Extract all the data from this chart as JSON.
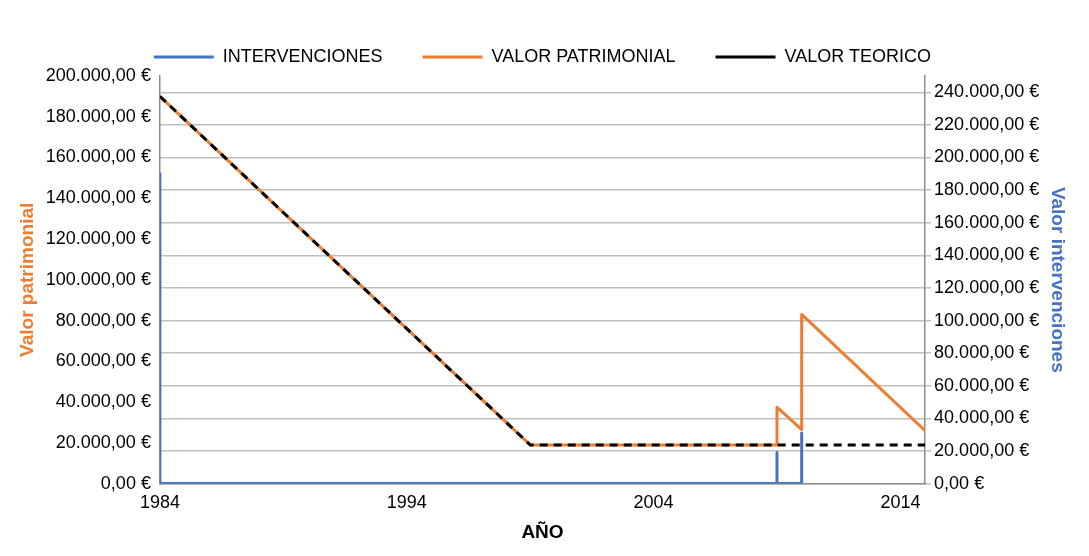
{
  "chart_data": {
    "type": "line",
    "xlabel": "AÑO",
    "ylabel": "Valor patrimonial",
    "y2label": "Valor intervenciones",
    "xlim": [
      1984,
      2015
    ],
    "xticks": [
      1984,
      1994,
      2004,
      2014
    ],
    "ylim": [
      0,
      200000
    ],
    "yticks": [
      {
        "value": 0,
        "label": "0,00 €"
      },
      {
        "value": 20000,
        "label": "20.000,00 €"
      },
      {
        "value": 40000,
        "label": "40.000,00 €"
      },
      {
        "value": 60000,
        "label": "60.000,00 €"
      },
      {
        "value": 80000,
        "label": "80.000,00 €"
      },
      {
        "value": 100000,
        "label": "100.000,00 €"
      },
      {
        "value": 120000,
        "label": "120.000,00 €"
      },
      {
        "value": 140000,
        "label": "140.000,00 €"
      },
      {
        "value": 160000,
        "label": "160.000,00 €"
      },
      {
        "value": 180000,
        "label": "180.000,00 €"
      },
      {
        "value": 200000,
        "label": "200.000,00 €"
      }
    ],
    "y2lim": [
      0,
      250000
    ],
    "y2ticks": [
      {
        "value": 0,
        "label": "0,00 €"
      },
      {
        "value": 20000,
        "label": "20.000,00 €"
      },
      {
        "value": 40000,
        "label": "40.000,00 €"
      },
      {
        "value": 60000,
        "label": "60.000,00 €"
      },
      {
        "value": 80000,
        "label": "80.000,00 €"
      },
      {
        "value": 100000,
        "label": "100.000,00 €"
      },
      {
        "value": 120000,
        "label": "120.000,00 €"
      },
      {
        "value": 140000,
        "label": "140.000,00 €"
      },
      {
        "value": 160000,
        "label": "160.000,00 €"
      },
      {
        "value": 180000,
        "label": "180.000,00 €"
      },
      {
        "value": 200000,
        "label": "200.000,00 €"
      },
      {
        "value": 220000,
        "label": "220.000,00 €"
      },
      {
        "value": 240000,
        "label": "240.000,00 €"
      }
    ],
    "grid": "y2",
    "legend": "top",
    "marker": "none",
    "series": [
      {
        "name": "INTERVENCIONES",
        "color": "#4472c4",
        "axis": "y2",
        "x": [
          1984,
          1984,
          2009,
          2009,
          2009,
          2010,
          2010,
          2010
        ],
        "values": [
          190000,
          0,
          0,
          19000,
          0,
          0,
          31000,
          0
        ]
      },
      {
        "name": "VALOR PATRIMONIAL",
        "color": "#ed7d31",
        "x": [
          1984,
          1999,
          2009,
          2009,
          2010,
          2010,
          2015
        ],
        "values": [
          190000,
          19000,
          19000,
          37500,
          26500,
          83000,
          26000
        ]
      },
      {
        "name": "VALOR TEORICO",
        "color": "#000000",
        "line_style": "dashed",
        "x": [
          1984,
          1999,
          2015
        ],
        "values": [
          190000,
          19000,
          19000
        ]
      }
    ]
  }
}
